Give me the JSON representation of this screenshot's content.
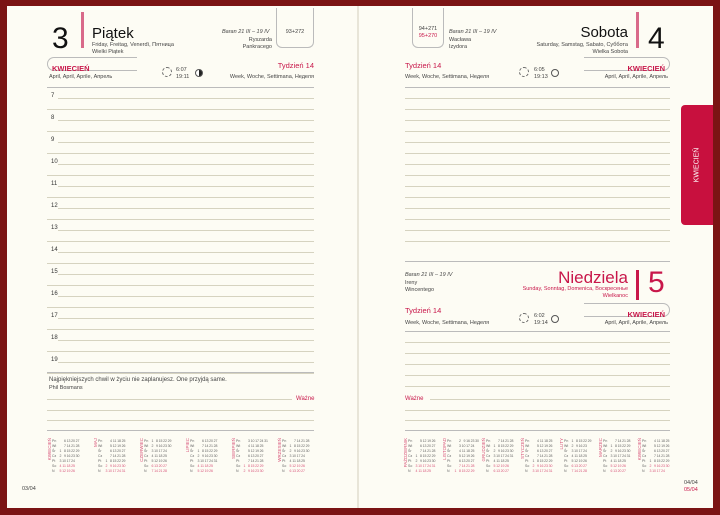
{
  "colors": {
    "accent": "#c8174a",
    "cover": "#7b1414",
    "paper": "#fdfcf4"
  },
  "left": {
    "day_number": "3",
    "day_name": "Piątek",
    "day_translations": "Friday, Freitag, Venerdì, Пятница",
    "holiday": "Wielki Piątek",
    "zodiac": "Baran 21 III – 19 IV",
    "namedays": [
      "Ryszarda",
      "Pankracego"
    ],
    "day_count": "93+272",
    "month": "KWIECIEŃ",
    "month_translations": "April, April, Aprile, Апрель",
    "sunrise": "6:07",
    "sunset": "19:11",
    "moon_icon": "moon-last-quarter",
    "week": "Tydzień 14",
    "week_translations": "Week, Woche, Settimana, Неделя",
    "hours": [
      "7",
      "8",
      "9",
      "10",
      "11",
      "12",
      "13",
      "14",
      "15",
      "16",
      "17",
      "18",
      "19"
    ],
    "quote": "Najpiękniejszych chwil w życiu nie zaplanujesz. One przyjdą same.",
    "quote_author": "Phil Bosmans",
    "important": "Ważne",
    "footer": "03/04",
    "calendars": [
      "KWIECIEŃ",
      "MAJ",
      "CZERWIEC",
      "LIPIEC",
      "SIERPIEŃ",
      "WRZESIEŃ"
    ]
  },
  "right": {
    "sat": {
      "day_number": "4",
      "day_name": "Sobota",
      "day_translations": "Saturday, Samstag, Sabato, Суббота",
      "holiday": "Wielka Sobota",
      "zodiac": "Baran 21 III – 19 IV",
      "namedays": [
        "Wacława",
        "Izydora"
      ],
      "day_count": "94+271",
      "day_count_2": "95+270",
      "month": "KWIECIEŃ",
      "month_translations": "April, April, Aprile, Апрель",
      "sunrise": "6:05",
      "sunset": "19:13",
      "week": "Tydzień 14",
      "week_translations": "Week, Woche, Settimana, Неделя"
    },
    "sun": {
      "day_number": "5",
      "day_name": "Niedziela",
      "day_translations": "Sunday, Sonntag, Domenica, Воскресенье",
      "holiday": "Wielkanoc",
      "zodiac": "Baran 21 III – 19 IV",
      "namedays": [
        "Ireny",
        "Wincentego"
      ],
      "month": "KWIECIEŃ",
      "month_translations": "April, April, Aprile, Апрель",
      "sunrise": "6:02",
      "sunset": "19:14",
      "week": "Tydzień 14",
      "week_translations": "Week, Woche, Settimana, Неделя"
    },
    "important": "Ważne",
    "footer_1": "04/04",
    "footer_2": "05/04",
    "calendars": [
      "PAŹDZIERNIK",
      "LISTOPAD",
      "GRUDZIEŃ",
      "STYCZEŃ",
      "LUTY",
      "MARZEC",
      "KWIECIEŃ"
    ]
  },
  "side_tab": "KWIECIEŃ",
  "weekdays": [
    "Pn",
    "Wt",
    "Śr",
    "Cz",
    "Pt",
    "So",
    "N"
  ]
}
